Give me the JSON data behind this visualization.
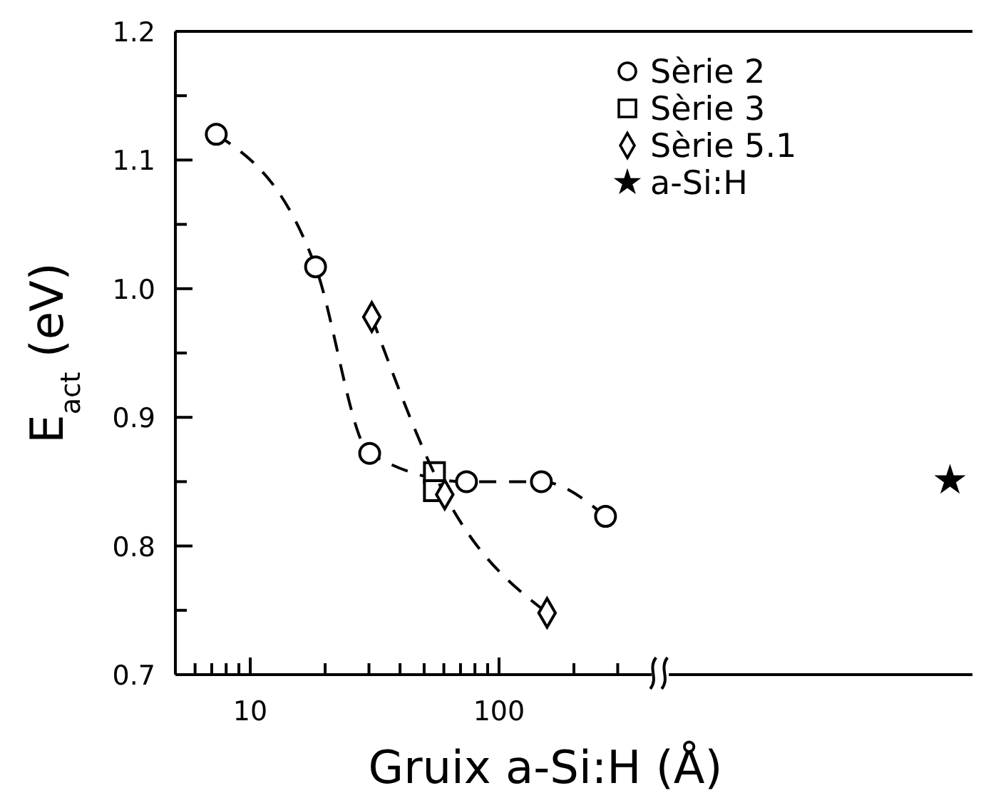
{
  "chart_data": {
    "type": "scatter",
    "xlabel": "Gruix a-Si:H (Å)",
    "ylabel": "E$_{act}$ (eV)",
    "log": "x",
    "xlim": [
      5,
      8000
    ],
    "ylim": [
      0.7,
      1.2
    ],
    "xticks": [
      {
        "value": 6,
        "label": null
      },
      {
        "value": 7,
        "label": null
      },
      {
        "value": 8,
        "label": null
      },
      {
        "value": 9,
        "label": null
      },
      10,
      {
        "value": 20,
        "label": null
      },
      {
        "value": 30,
        "label": null
      },
      {
        "value": 40,
        "label": null
      },
      {
        "value": 50,
        "label": null
      },
      {
        "value": 60,
        "label": null
      },
      {
        "value": 70,
        "label": null
      },
      {
        "value": 80,
        "label": null
      },
      {
        "value": 90,
        "label": null
      },
      100,
      {
        "value": 200,
        "label": null
      },
      {
        "value": 300,
        "label": null
      }
    ],
    "yticks": [
      0.7,
      {
        "value": 0.75,
        "label": null
      },
      0.8,
      {
        "value": 0.85,
        "label": null
      },
      0.9,
      {
        "value": 0.95,
        "label": null
      },
      {
        "value": 1.0,
        "label": "1.0"
      },
      {
        "value": 1.05,
        "label": null
      },
      1.1,
      {
        "value": 1.15,
        "label": null
      },
      1.2
    ],
    "grid": false,
    "legend": "top right",
    "series": [
      {
        "name": "Sèrie 2",
        "type": "line",
        "color": "#000000",
        "marker": "circle",
        "line_style": "dashed",
        "x": [
          7.3,
          18.3,
          30.2,
          74,
          148,
          268
        ],
        "values": [
          1.12,
          1.017,
          0.872,
          0.85,
          0.85,
          0.823
        ]
      },
      {
        "name": "Sèrie 3",
        "color": "#000000",
        "marker": "square",
        "line_style": "none",
        "x": [
          55,
          55
        ],
        "values": [
          0.857,
          0.843
        ]
      },
      {
        "name": "Sèrie 5.1",
        "type": "line",
        "color": "#000000",
        "marker": "diamond",
        "line_style": "dashed",
        "x": [
          30.8,
          60.5,
          156
        ],
        "values": [
          0.978,
          0.84,
          0.748
        ]
      },
      {
        "name": "a-Si:H",
        "color": "#000000",
        "marker": "star",
        "line_style": "none",
        "x": [
          6500
        ],
        "values": [
          0.851
        ]
      }
    ]
  }
}
